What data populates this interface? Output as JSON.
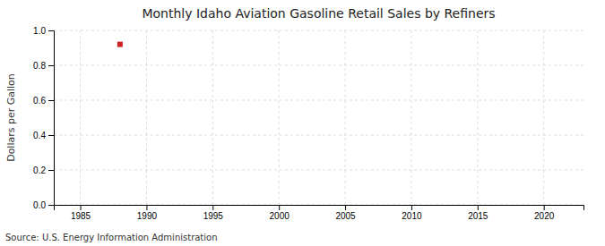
{
  "chart_data": {
    "type": "scatter",
    "title": "Monthly Idaho Aviation Gasoline Retail Sales by Refiners",
    "ylabel": "Dollars per Gallon",
    "source": "Source: U.S. Energy Information Administration",
    "x": [
      1988.0
    ],
    "values": [
      0.92
    ],
    "color": "#cc2222",
    "marker": "square",
    "xlim": [
      1983,
      2023
    ],
    "ylim": [
      0.0,
      1.0
    ],
    "xticks": [
      1985,
      1990,
      1995,
      2000,
      2005,
      2010,
      2015,
      2020
    ],
    "yticks": [
      {
        "value": 0.0,
        "label": "0.0"
      },
      0.2,
      0.4,
      0.6,
      0.8,
      {
        "value": 1.0,
        "label": "1.0"
      }
    ],
    "grid": true
  }
}
